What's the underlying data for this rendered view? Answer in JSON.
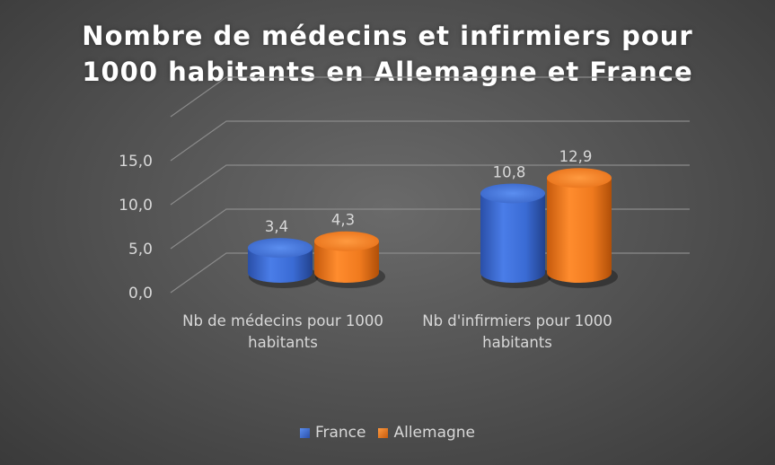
{
  "title_lines": [
    "Nombre de médecins et infirmiers pour",
    "1000 habitants en Allemagne et France"
  ],
  "chart_data": {
    "type": "bar",
    "title": "Nombre de médecins et infirmiers pour 1000 habitants en Allemagne et France",
    "categories": [
      [
        "Nb de médecins pour 1000",
        "habitants"
      ],
      [
        "Nb d'infirmiers pour 1000",
        "habitants"
      ]
    ],
    "series": [
      {
        "name": "France",
        "values": [
          3.4,
          10.8
        ],
        "labels": [
          "3,4",
          "10,8"
        ],
        "color": "#3a6bd4"
      },
      {
        "name": "Allemagne",
        "values": [
          4.3,
          12.9
        ],
        "labels": [
          "4,3",
          "12,9"
        ],
        "color": "#f07a1e"
      }
    ],
    "yticks": [
      "0,0",
      "5,0",
      "10,0",
      "15,0"
    ],
    "ylim": [
      0,
      20
    ],
    "grid": true,
    "legend_position": "bottom"
  },
  "legend": {
    "items": [
      {
        "label": "France",
        "color": "#3a6bd4"
      },
      {
        "label": "Allemagne",
        "color": "#f07a1e"
      }
    ]
  }
}
